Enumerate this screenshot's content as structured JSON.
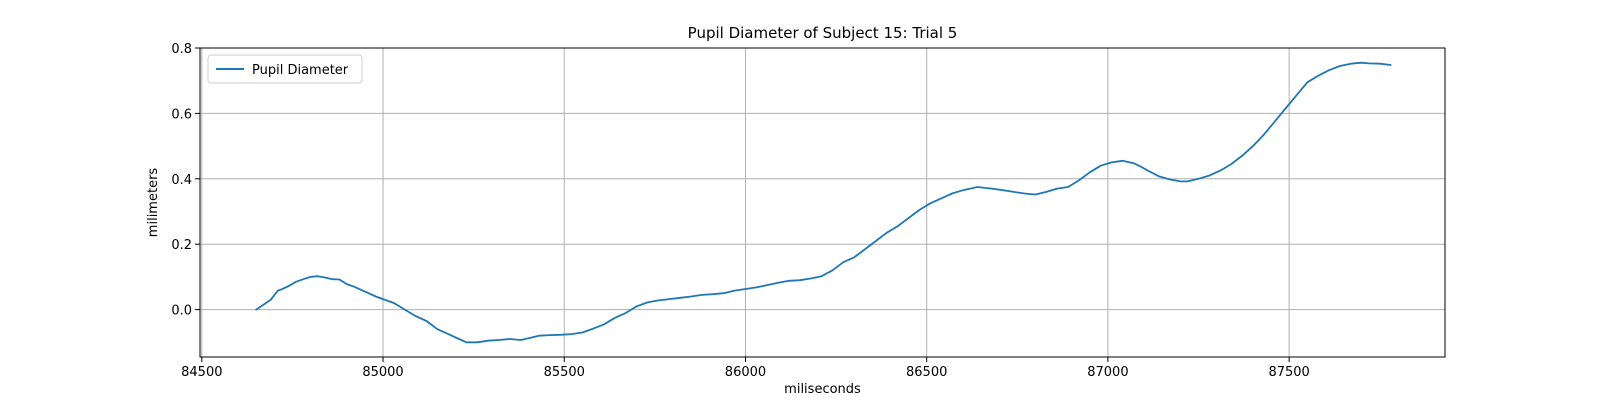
{
  "chart_data": {
    "type": "line",
    "title": "Pupil Diameter of Subject 15: Trial 5",
    "xlabel": "miliseconds",
    "ylabel": "milimeters",
    "xlim": [
      84495,
      87930
    ],
    "ylim": [
      -0.145,
      0.8
    ],
    "x_ticks": [
      84500,
      85000,
      85500,
      86000,
      86500,
      87000,
      87500
    ],
    "y_ticks": [
      0.0,
      0.2,
      0.4,
      0.6,
      0.8
    ],
    "x_tick_labels": [
      "84500",
      "85000",
      "85500",
      "86000",
      "86500",
      "87000",
      "87500"
    ],
    "y_tick_labels": [
      "0.0",
      "0.2",
      "0.4",
      "0.6",
      "0.8"
    ],
    "grid": true,
    "legend_position": "upper-left",
    "series": [
      {
        "name": "Pupil Diameter",
        "color": "#1f77b4",
        "x": [
          84650,
          84670,
          84690,
          84710,
          84720,
          84740,
          84760,
          84780,
          84800,
          84820,
          84840,
          84860,
          84880,
          84900,
          84920,
          84950,
          84980,
          85000,
          85030,
          85060,
          85090,
          85120,
          85150,
          85180,
          85210,
          85230,
          85260,
          85290,
          85320,
          85350,
          85380,
          85400,
          85430,
          85460,
          85490,
          85520,
          85550,
          85580,
          85610,
          85640,
          85670,
          85700,
          85730,
          85760,
          85790,
          85820,
          85850,
          85880,
          85910,
          85940,
          85970,
          86000,
          86030,
          86060,
          86090,
          86120,
          86150,
          86180,
          86210,
          86240,
          86270,
          86300,
          86330,
          86360,
          86390,
          86420,
          86450,
          86480,
          86510,
          86540,
          86570,
          86600,
          86620,
          86640,
          86660,
          86680,
          86710,
          86740,
          86770,
          86800,
          86830,
          86860,
          86890,
          86920,
          86950,
          86980,
          87010,
          87040,
          87070,
          87090,
          87110,
          87140,
          87170,
          87200,
          87220,
          87250,
          87280,
          87310,
          87340,
          87370,
          87400,
          87430,
          87460,
          87490,
          87520,
          87550,
          87580,
          87610,
          87640,
          87670,
          87700,
          87720,
          87750,
          87780
        ],
        "y": [
          0.0,
          0.015,
          0.03,
          0.058,
          0.062,
          0.072,
          0.085,
          0.093,
          0.1,
          0.102,
          0.098,
          0.093,
          0.092,
          0.078,
          0.07,
          0.055,
          0.04,
          0.032,
          0.02,
          0.0,
          -0.02,
          -0.035,
          -0.06,
          -0.075,
          -0.09,
          -0.1,
          -0.1,
          -0.095,
          -0.093,
          -0.09,
          -0.093,
          -0.088,
          -0.08,
          -0.078,
          -0.077,
          -0.075,
          -0.07,
          -0.058,
          -0.045,
          -0.025,
          -0.01,
          0.01,
          0.022,
          0.028,
          0.032,
          0.036,
          0.04,
          0.045,
          0.047,
          0.05,
          0.058,
          0.063,
          0.068,
          0.075,
          0.082,
          0.088,
          0.09,
          0.095,
          0.102,
          0.12,
          0.145,
          0.16,
          0.185,
          0.21,
          0.235,
          0.255,
          0.28,
          0.305,
          0.325,
          0.34,
          0.355,
          0.365,
          0.37,
          0.375,
          0.372,
          0.37,
          0.365,
          0.36,
          0.355,
          0.352,
          0.36,
          0.37,
          0.375,
          0.395,
          0.42,
          0.44,
          0.45,
          0.455,
          0.448,
          0.438,
          0.425,
          0.408,
          0.398,
          0.392,
          0.392,
          0.4,
          0.41,
          0.425,
          0.445,
          0.47,
          0.5,
          0.535,
          0.575,
          0.615,
          0.655,
          0.695,
          0.715,
          0.732,
          0.745,
          0.752,
          0.755,
          0.753,
          0.752,
          0.748
        ]
      }
    ]
  }
}
